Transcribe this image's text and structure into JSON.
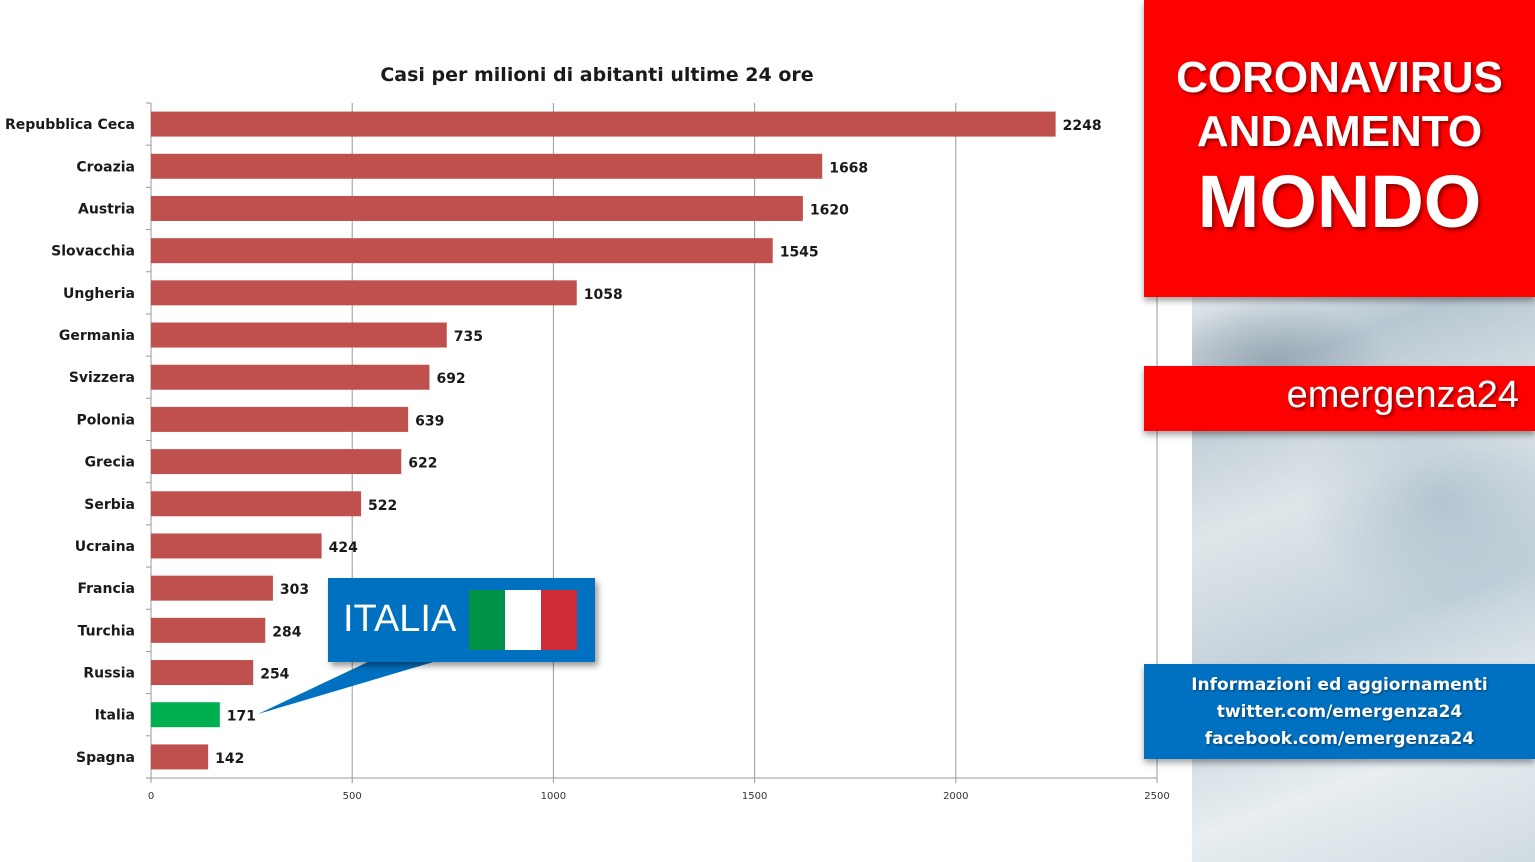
{
  "chart_data": {
    "type": "bar",
    "orientation": "horizontal",
    "title": "Casi per milioni di abitanti ultime 24 ore",
    "categories": [
      "Repubblica Ceca",
      "Croazia",
      "Austria",
      "Slovacchia",
      "Ungheria",
      "Germania",
      "Svizzera",
      "Polonia",
      "Grecia",
      "Serbia",
      "Ucraina",
      "Francia",
      "Turchia",
      "Russia",
      "Italia",
      "Spagna"
    ],
    "values": [
      2248,
      1668,
      1620,
      1545,
      1058,
      735,
      692,
      639,
      622,
      522,
      424,
      303,
      284,
      254,
      171,
      142
    ],
    "highlight": "Italia",
    "bar_color": "#c0504d",
    "highlight_color": "#00b050",
    "xlim": [
      0,
      2500
    ],
    "xticks": [
      0,
      500,
      1000,
      1500,
      2000,
      2500
    ],
    "grid": "vertical",
    "xlabel": "",
    "ylabel": ""
  },
  "header": {
    "line1": "CORONAVIRUS",
    "line2": "ANDAMENTO",
    "line3": "MONDO",
    "color": "#ff0000"
  },
  "brand": {
    "name": "emergenza24"
  },
  "info": {
    "line1": "Informazioni ed aggiornamenti",
    "line2": "twitter.com/emergenza24",
    "line3": "facebook.com/emergenza24",
    "color": "#0070c0"
  },
  "callout": {
    "label": "ITALIA",
    "flag_colors": [
      "#009246",
      "#ffffff",
      "#ce2b37"
    ]
  }
}
